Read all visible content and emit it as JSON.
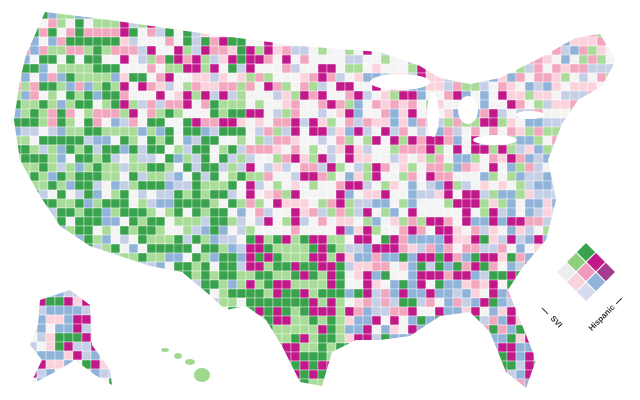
{
  "legend": {
    "x_label": "SVI",
    "y_label": "Hispanic"
  }
}
